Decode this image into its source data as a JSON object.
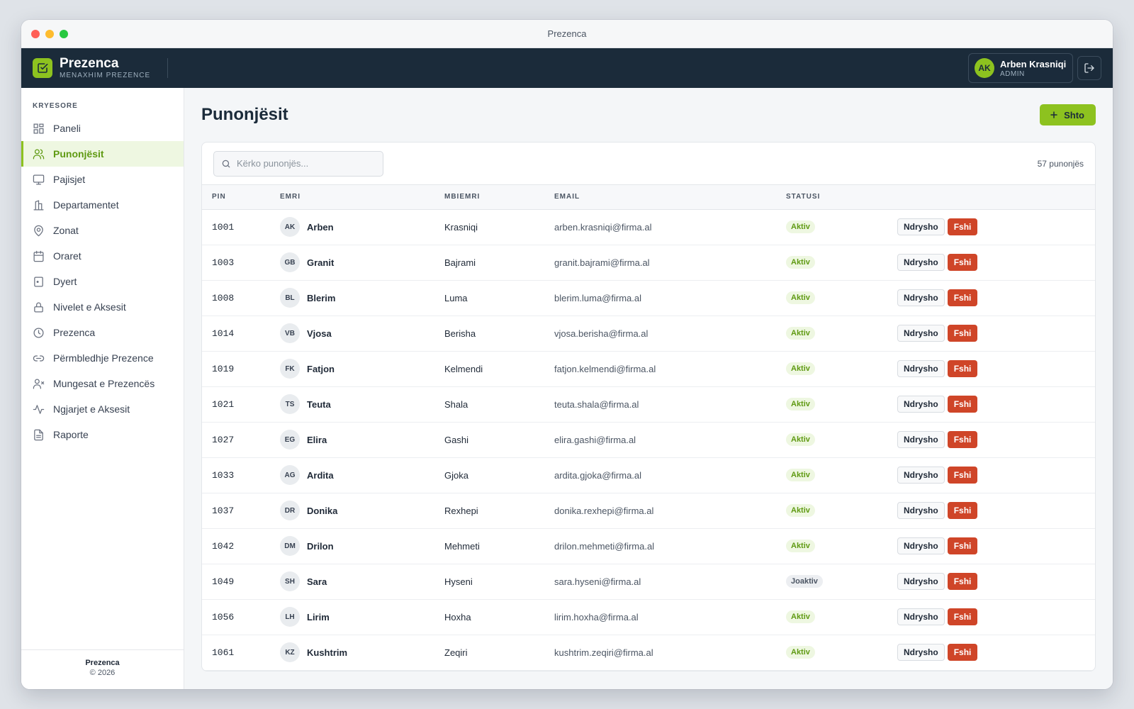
{
  "window": {
    "title": "Prezenca"
  },
  "header": {
    "brand_name": "Prezenca",
    "brand_sub": "MENAXHIM PREZENCE",
    "user": {
      "initials": "AK",
      "name": "Arben Krasniqi",
      "role": "ADMIN"
    }
  },
  "sidebar": {
    "section": "KRYESORE",
    "items": [
      {
        "label": "Paneli",
        "icon": "dashboard-icon"
      },
      {
        "label": "Punonjësit",
        "icon": "users-icon",
        "active": true
      },
      {
        "label": "Pajisjet",
        "icon": "monitor-icon"
      },
      {
        "label": "Departamentet",
        "icon": "building-icon"
      },
      {
        "label": "Zonat",
        "icon": "map-pin-icon"
      },
      {
        "label": "Oraret",
        "icon": "calendar-icon"
      },
      {
        "label": "Dyert",
        "icon": "door-icon"
      },
      {
        "label": "Nivelet e Aksesit",
        "icon": "lock-icon"
      },
      {
        "label": "Prezenca",
        "icon": "clock-icon"
      },
      {
        "label": "Përmbledhje Prezence",
        "icon": "link-icon"
      },
      {
        "label": "Mungesat e Prezencës",
        "icon": "user-x-icon"
      },
      {
        "label": "Ngjarjet e Aksesit",
        "icon": "activity-icon"
      },
      {
        "label": "Raporte",
        "icon": "file-icon"
      }
    ],
    "footer_name": "Prezenca",
    "footer_copy": "© 2026"
  },
  "main": {
    "title": "Punonjësit",
    "add_label": "Shto",
    "search_placeholder": "Kërko punonjës...",
    "count_label": "57 punonjës",
    "columns": {
      "pin": "PIN",
      "first": "EMRI",
      "last": "MBIEMRI",
      "email": "EMAIL",
      "status": "STATUSI"
    },
    "edit_label": "Ndrysho",
    "delete_label": "Fshi",
    "rows": [
      {
        "pin": "1001",
        "initials": "AK",
        "first": "Arben",
        "last": "Krasniqi",
        "email": "arben.krasniqi@firma.al",
        "status": "Aktiv",
        "active": true
      },
      {
        "pin": "1003",
        "initials": "GB",
        "first": "Granit",
        "last": "Bajrami",
        "email": "granit.bajrami@firma.al",
        "status": "Aktiv",
        "active": true
      },
      {
        "pin": "1008",
        "initials": "BL",
        "first": "Blerim",
        "last": "Luma",
        "email": "blerim.luma@firma.al",
        "status": "Aktiv",
        "active": true
      },
      {
        "pin": "1014",
        "initials": "VB",
        "first": "Vjosa",
        "last": "Berisha",
        "email": "vjosa.berisha@firma.al",
        "status": "Aktiv",
        "active": true
      },
      {
        "pin": "1019",
        "initials": "FK",
        "first": "Fatjon",
        "last": "Kelmendi",
        "email": "fatjon.kelmendi@firma.al",
        "status": "Aktiv",
        "active": true
      },
      {
        "pin": "1021",
        "initials": "TS",
        "first": "Teuta",
        "last": "Shala",
        "email": "teuta.shala@firma.al",
        "status": "Aktiv",
        "active": true
      },
      {
        "pin": "1027",
        "initials": "EG",
        "first": "Elira",
        "last": "Gashi",
        "email": "elira.gashi@firma.al",
        "status": "Aktiv",
        "active": true
      },
      {
        "pin": "1033",
        "initials": "AG",
        "first": "Ardita",
        "last": "Gjoka",
        "email": "ardita.gjoka@firma.al",
        "status": "Aktiv",
        "active": true
      },
      {
        "pin": "1037",
        "initials": "DR",
        "first": "Donika",
        "last": "Rexhepi",
        "email": "donika.rexhepi@firma.al",
        "status": "Aktiv",
        "active": true
      },
      {
        "pin": "1042",
        "initials": "DM",
        "first": "Drilon",
        "last": "Mehmeti",
        "email": "drilon.mehmeti@firma.al",
        "status": "Aktiv",
        "active": true
      },
      {
        "pin": "1049",
        "initials": "SH",
        "first": "Sara",
        "last": "Hyseni",
        "email": "sara.hyseni@firma.al",
        "status": "Joaktiv",
        "active": false
      },
      {
        "pin": "1056",
        "initials": "LH",
        "first": "Lirim",
        "last": "Hoxha",
        "email": "lirim.hoxha@firma.al",
        "status": "Aktiv",
        "active": true
      },
      {
        "pin": "1061",
        "initials": "KZ",
        "first": "Kushtrim",
        "last": "Zeqiri",
        "email": "kushtrim.zeqiri@firma.al",
        "status": "Aktiv",
        "active": true
      }
    ]
  },
  "colors": {
    "accent": "#8dc21f",
    "header_bg": "#1b2b3a",
    "danger": "#cf4528",
    "active_text": "#5f9a12"
  }
}
